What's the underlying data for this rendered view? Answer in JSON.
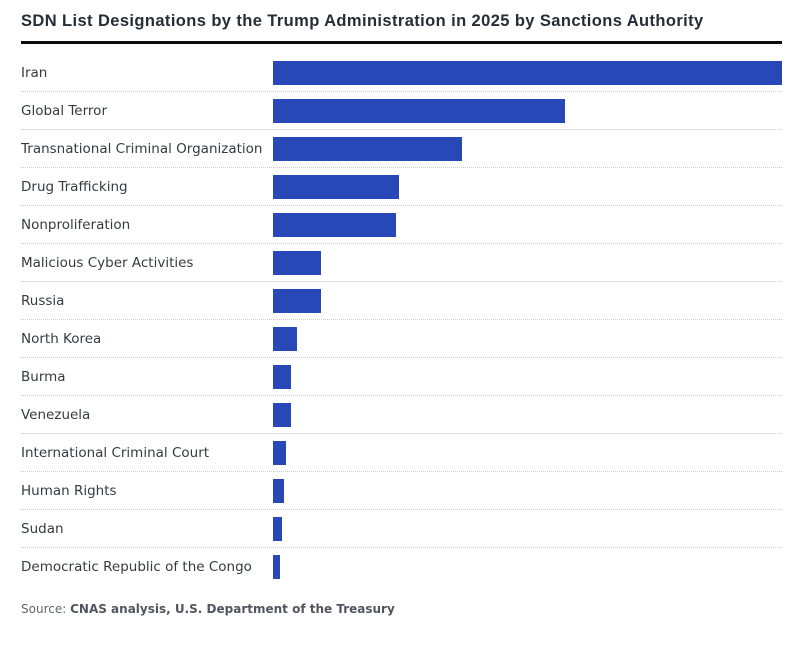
{
  "header": {
    "title": "SDN List Designations by the Trump Administration in 2025 by Sanctions Authority"
  },
  "source": {
    "prefix": "Source:",
    "text": "CNAS analysis, U.S. Department of the Treasury"
  },
  "colors": {
    "bar_blue": "#2848b8",
    "title_dark": "#242e37",
    "label_gray": "#363b41",
    "separator_gray": "#c9cacc",
    "rule_black": "#0c0c0c",
    "source_gray": "#60666d"
  },
  "chart_data": {
    "type": "bar",
    "orientation": "horizontal",
    "title": "SDN List Designations by the Trump Administration in 2025 by Sanctions Authority",
    "categories": [
      "Iran",
      "Global Terror",
      "Transnational Criminal Organization",
      "Drug Trafficking",
      "Nonproliferation",
      "Malicious Cyber Activities",
      "Russia",
      "North Korea",
      "Burma",
      "Venezuela",
      "International Criminal Court",
      "Human Rights",
      "Sudan",
      "Democratic Republic of the Congo"
    ],
    "values_pct_of_max": [
      100,
      57.3,
      37.1,
      24.8,
      24.2,
      9.4,
      9.4,
      4.7,
      3.5,
      3.5,
      2.6,
      2.2,
      1.8,
      1.4
    ],
    "bar_color": "#2848b8",
    "xlabel": "",
    "ylabel": "",
    "value_labels_shown": false,
    "axes_shown": false,
    "legend": "none",
    "grid": "dotted-row-separators"
  }
}
